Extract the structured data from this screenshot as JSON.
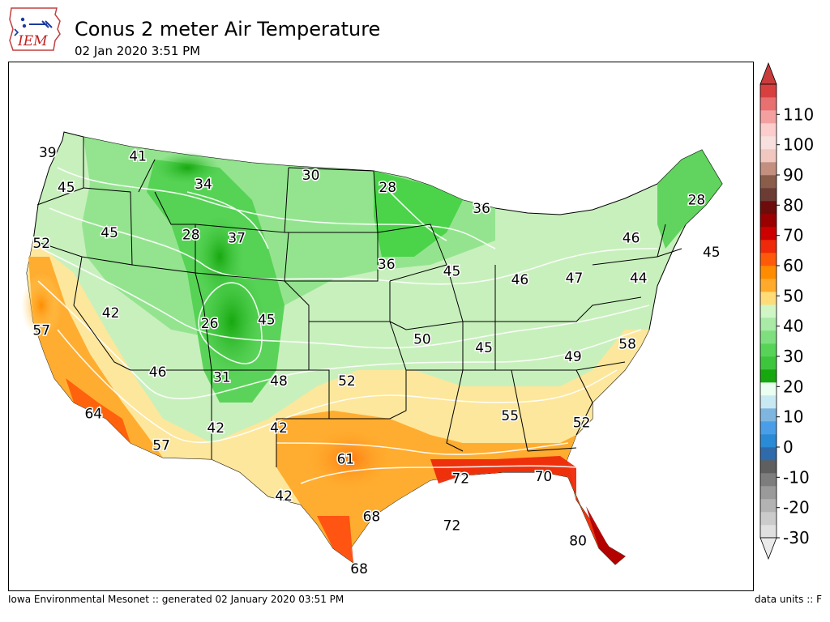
{
  "header": {
    "title": "Conus 2 meter Air Temperature",
    "subtitle": "02 Jan 2020 3:51 PM",
    "logo_text": "IEM",
    "logo_icon": "iowa-state-weather-logo"
  },
  "footer": {
    "left": "Iowa Environmental Mesonet :: generated 02 January 2020 03:51 PM",
    "right": "data units :: F"
  },
  "map_labels": [
    {
      "text": "39",
      "lon": -123.7,
      "lat": 48.2
    },
    {
      "text": "41",
      "lon": -116.4,
      "lat": 48.0
    },
    {
      "text": "45",
      "lon": -122.2,
      "lat": 46.2
    },
    {
      "text": "34",
      "lon": -111.1,
      "lat": 46.4
    },
    {
      "text": "30",
      "lon": -102.4,
      "lat": 46.9
    },
    {
      "text": "28",
      "lon": -96.2,
      "lat": 46.2
    },
    {
      "text": "28",
      "lon": -71.2,
      "lat": 45.5
    },
    {
      "text": "52",
      "lon": -124.2,
      "lat": 43.0
    },
    {
      "text": "45",
      "lon": -118.7,
      "lat": 43.6
    },
    {
      "text": "28",
      "lon": -112.1,
      "lat": 43.5
    },
    {
      "text": "37",
      "lon": -108.4,
      "lat": 43.3
    },
    {
      "text": "36",
      "lon": -88.6,
      "lat": 45.0
    },
    {
      "text": "46",
      "lon": -76.5,
      "lat": 43.3
    },
    {
      "text": "45",
      "lon": -70.0,
      "lat": 42.5
    },
    {
      "text": "36",
      "lon": -96.3,
      "lat": 41.8
    },
    {
      "text": "45",
      "lon": -91.0,
      "lat": 41.4
    },
    {
      "text": "46",
      "lon": -85.5,
      "lat": 40.9
    },
    {
      "text": "47",
      "lon": -81.1,
      "lat": 41.0
    },
    {
      "text": "44",
      "lon": -75.9,
      "lat": 41.0
    },
    {
      "text": "57",
      "lon": -124.2,
      "lat": 38.0
    },
    {
      "text": "42",
      "lon": -118.6,
      "lat": 39.0
    },
    {
      "text": "26",
      "lon": -110.6,
      "lat": 38.4
    },
    {
      "text": "45",
      "lon": -106.0,
      "lat": 38.6
    },
    {
      "text": "50",
      "lon": -93.4,
      "lat": 37.5
    },
    {
      "text": "45",
      "lon": -88.4,
      "lat": 37.0
    },
    {
      "text": "49",
      "lon": -81.2,
      "lat": 36.5
    },
    {
      "text": "58",
      "lon": -76.8,
      "lat": 37.2
    },
    {
      "text": "46",
      "lon": -114.8,
      "lat": 35.6
    },
    {
      "text": "31",
      "lon": -109.6,
      "lat": 35.3
    },
    {
      "text": "48",
      "lon": -105.0,
      "lat": 35.1
    },
    {
      "text": "52",
      "lon": -99.5,
      "lat": 35.1
    },
    {
      "text": "64",
      "lon": -120.0,
      "lat": 33.2
    },
    {
      "text": "55",
      "lon": -86.3,
      "lat": 33.1
    },
    {
      "text": "52",
      "lon": -80.5,
      "lat": 32.7
    },
    {
      "text": "42",
      "lon": -110.1,
      "lat": 32.4
    },
    {
      "text": "42",
      "lon": -105.0,
      "lat": 32.4
    },
    {
      "text": "57",
      "lon": -114.5,
      "lat": 31.4
    },
    {
      "text": "61",
      "lon": -99.6,
      "lat": 30.6
    },
    {
      "text": "72",
      "lon": -90.3,
      "lat": 29.5
    },
    {
      "text": "70",
      "lon": -83.6,
      "lat": 29.6
    },
    {
      "text": "42",
      "lon": -104.6,
      "lat": 28.5
    },
    {
      "text": "68",
      "lon": -97.5,
      "lat": 27.3
    },
    {
      "text": "72",
      "lon": -91.0,
      "lat": 26.8
    },
    {
      "text": "80",
      "lon": -80.8,
      "lat": 25.9
    },
    {
      "text": "68",
      "lon": -98.5,
      "lat": 24.3
    }
  ],
  "colorbar": {
    "tick_labels": [
      "110",
      "100",
      "90",
      "80",
      "70",
      "60",
      "50",
      "40",
      "30",
      "20",
      "10",
      "0",
      "-10",
      "-20",
      "-30"
    ],
    "levels": [
      -30,
      -25,
      -20,
      -15,
      -10,
      -5,
      0,
      5,
      10,
      15,
      20,
      25,
      30,
      35,
      40,
      45,
      50,
      55,
      60,
      65,
      70,
      75,
      80,
      85,
      90,
      95,
      100,
      105,
      110,
      115,
      120
    ],
    "colors": [
      "#e0e0e0",
      "#cbcbcb",
      "#b3b3b3",
      "#9a9a9a",
      "#7d7d7d",
      "#5f5f5f",
      "#2f6aab",
      "#2a8ad5",
      "#4a9ee8",
      "#7fb6e0",
      "#c8e8f2",
      "#eafef2",
      "#17a80f",
      "#3ec53e",
      "#57d457",
      "#7fdf7f",
      "#a9eaa6",
      "#d0f6c6",
      "#ffdc77",
      "#ffaa2a",
      "#ff8c00",
      "#ff5a0a",
      "#ee2a0a",
      "#cd0000",
      "#9b0000",
      "#6e0c0c",
      "#6c3c34",
      "#8a5c4a",
      "#c39080",
      "#f0c8c0",
      "#f7e0dd",
      "#fccdcd",
      "#f4a0a0",
      "#e87070",
      "#d84040"
    ],
    "over_color": "#c83c3c",
    "under_color": "#eaeaea"
  }
}
